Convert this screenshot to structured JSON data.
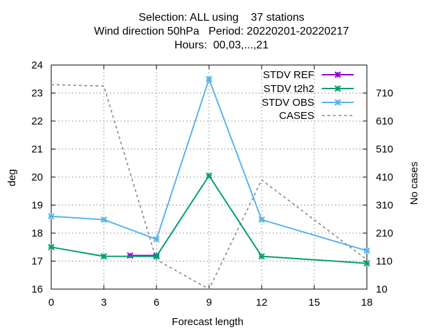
{
  "chart_data": {
    "type": "line",
    "title_lines": [
      "Selection: ALL using    37 stations",
      "Wind direction 50hPa   Period: 20220201-20220217",
      "Hours:  00,03,...,21"
    ],
    "xlabel": "Forecast length",
    "ylabel": "deg",
    "y2label": "No cases",
    "xlim": [
      0,
      18
    ],
    "ylim": [
      16,
      24
    ],
    "y2lim": [
      10,
      810
    ],
    "xticks": [
      0,
      3,
      6,
      9,
      12,
      15,
      18
    ],
    "yticks": [
      16,
      17,
      18,
      19,
      20,
      21,
      22,
      23,
      24
    ],
    "y2ticks": [
      10,
      110,
      210,
      310,
      410,
      510,
      610,
      710
    ],
    "grid": true,
    "legend_position": "top-right",
    "series": [
      {
        "name": "STDV REF",
        "axis": "y",
        "color": "#9400d3",
        "style": "solid",
        "marker": "x",
        "x": [
          4.5,
          6
        ],
        "y": [
          17.2,
          17.2
        ]
      },
      {
        "name": "STDV t2h2",
        "axis": "y",
        "color": "#009e73",
        "style": "solid",
        "marker": "x",
        "x": [
          0,
          3,
          6,
          9,
          12,
          18
        ],
        "y": [
          17.5,
          17.17,
          17.17,
          20.05,
          17.17,
          16.92
        ]
      },
      {
        "name": "STDV OBS",
        "axis": "y",
        "color": "#56b4e9",
        "style": "solid",
        "marker": "x",
        "x": [
          0,
          3,
          6,
          9,
          12,
          18
        ],
        "y": [
          18.6,
          18.48,
          17.78,
          23.5,
          18.48,
          17.37
        ]
      },
      {
        "name": "CASES",
        "axis": "y2",
        "color": "#888888",
        "style": "dashed",
        "marker": "none",
        "x": [
          0,
          3,
          6,
          9,
          12,
          18
        ],
        "y": [
          740,
          735,
          115,
          10,
          400,
          115
        ]
      }
    ]
  }
}
